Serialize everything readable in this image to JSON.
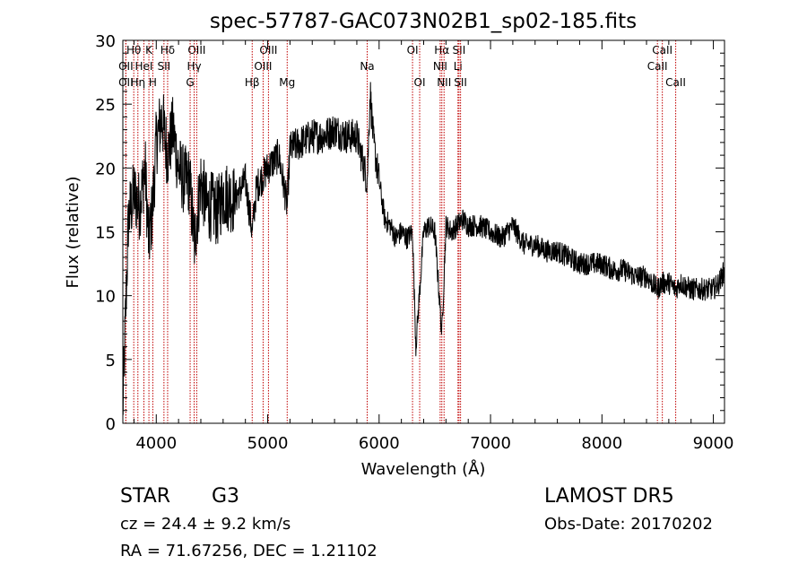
{
  "chart_data": {
    "type": "line",
    "title": "spec-57787-GAC073N02B1_sp02-185.fits",
    "xlabel": "Wavelength (Å)",
    "ylabel": "Flux (relative)",
    "xlim": [
      3700,
      9100
    ],
    "ylim": [
      0,
      30
    ],
    "x_ticks": [
      4000,
      5000,
      6000,
      7000,
      8000,
      9000
    ],
    "y_ticks": [
      0,
      5,
      10,
      15,
      20,
      25,
      30
    ],
    "grid": false,
    "colors": {
      "spectrum": "#000000",
      "lines": "#c00000"
    },
    "spectrum_profile": {
      "x": [
        3700,
        3720,
        3750,
        3800,
        3850,
        3900,
        3933,
        3968,
        4000,
        4050,
        4102,
        4150,
        4200,
        4250,
        4300,
        4340,
        4400,
        4450,
        4500,
        4550,
        4600,
        4700,
        4800,
        4861,
        4900,
        5000,
        5100,
        5175,
        5200,
        5300,
        5400,
        5500,
        5600,
        5700,
        5800,
        5893,
        5920,
        5950,
        6000,
        6050,
        6100,
        6150,
        6200,
        6250,
        6300,
        6330,
        6400,
        6450,
        6500,
        6563,
        6600,
        6650,
        6700,
        6750,
        6800,
        6900,
        7000,
        7100,
        7200,
        7300,
        7400,
        7500,
        7600,
        7700,
        7800,
        7900,
        8000,
        8100,
        8200,
        8300,
        8400,
        8498,
        8542,
        8600,
        8662,
        8700,
        8800,
        8900,
        9000,
        9050,
        9100
      ],
      "y": [
        1,
        7,
        16,
        18,
        17,
        20,
        14,
        17,
        22,
        24,
        21,
        23,
        20,
        19,
        19,
        14,
        19,
        17,
        17,
        16.5,
        18,
        17.5,
        19,
        15,
        18.5,
        20,
        21,
        17,
        21.5,
        22,
        22.5,
        22.5,
        23,
        22.5,
        22.5,
        19,
        26,
        22,
        19,
        16,
        15.5,
        14.5,
        15,
        14.5,
        15,
        6,
        15,
        15.5,
        15,
        7,
        15.5,
        15,
        15.5,
        16,
        15.5,
        15.5,
        15,
        14.5,
        15.5,
        14,
        14,
        13.5,
        13.5,
        13,
        12.5,
        12.5,
        12.5,
        12,
        12,
        11.5,
        11.5,
        10.5,
        11,
        11,
        10.5,
        11,
        10.5,
        10.5,
        10.5,
        11,
        12
      ]
    },
    "lines": [
      {
        "label": "Hθ",
        "x": 3798,
        "row": 0
      },
      {
        "label": "OII",
        "x": 3727,
        "row": 1
      },
      {
        "label": "OII",
        "x": 3727,
        "row": 2
      },
      {
        "label": "K",
        "x": 3934,
        "row": 0
      },
      {
        "label": "HeI",
        "x": 3889,
        "row": 1
      },
      {
        "label": "Hη",
        "x": 3835,
        "row": 2
      },
      {
        "label": "SII",
        "x": 4069,
        "row": 1
      },
      {
        "label": "H",
        "x": 3969,
        "row": 2
      },
      {
        "label": "Hδ",
        "x": 4102,
        "row": 0
      },
      {
        "label": "OIII",
        "x": 4363,
        "row": 0
      },
      {
        "label": "Hγ",
        "x": 4340,
        "row": 1
      },
      {
        "label": "G",
        "x": 4304,
        "row": 2
      },
      {
        "label": "Hβ",
        "x": 4861,
        "row": 2
      },
      {
        "label": "OIII",
        "x": 5007,
        "row": 0
      },
      {
        "label": "OIII",
        "x": 4959,
        "row": 1
      },
      {
        "label": "Mg",
        "x": 5175,
        "row": 2
      },
      {
        "label": "Na",
        "x": 5893,
        "row": 1
      },
      {
        "label": "OI",
        "x": 6300,
        "row": 0
      },
      {
        "label": "OI",
        "x": 6364,
        "row": 2
      },
      {
        "label": "Hα",
        "x": 6563,
        "row": 0
      },
      {
        "label": "SII",
        "x": 6717,
        "row": 0
      },
      {
        "label": "NII",
        "x": 6548,
        "row": 1
      },
      {
        "label": "Li",
        "x": 6708,
        "row": 1
      },
      {
        "label": "NII",
        "x": 6583,
        "row": 2
      },
      {
        "label": "SII",
        "x": 6731,
        "row": 2
      },
      {
        "label": "CaII",
        "x": 8542,
        "row": 0
      },
      {
        "label": "CaII",
        "x": 8498,
        "row": 1
      },
      {
        "label": "CaII",
        "x": 8662,
        "row": 2
      }
    ]
  },
  "info": {
    "class_label": "STAR",
    "subclass": "G3",
    "cz": "cz = 24.4 ± 9.2 km/s",
    "coords": "RA =  71.67256, DEC =   1.21102",
    "survey": "LAMOST  DR5",
    "obs_date": "Obs-Date: 20170202"
  }
}
